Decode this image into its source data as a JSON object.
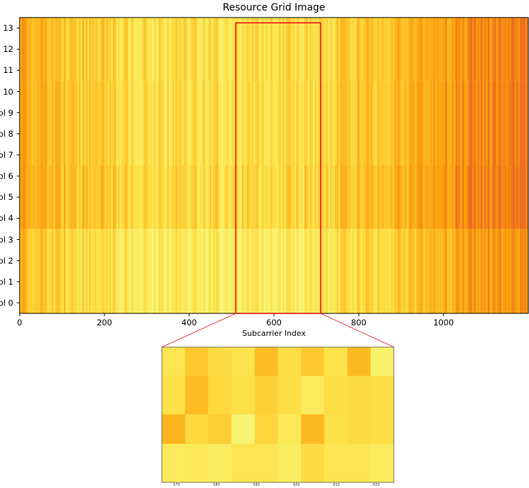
{
  "chart_data": {
    "type": "heatmap",
    "title": "Resource Grid Image",
    "xlabel": "Subcarrier Index",
    "ylabel": "",
    "xlim": [
      0,
      1200
    ],
    "ylim": [
      -0.5,
      13.5
    ],
    "x_ticks": [
      "0",
      "200",
      "400",
      "600",
      "800",
      "1000"
    ],
    "x_tick_values": [
      0,
      200,
      400,
      600,
      800,
      1000
    ],
    "y_ticks": [
      "ol 0",
      "ol 1",
      "ol 2",
      "ol 3",
      "ol 4",
      "ol 5",
      "ol 6",
      "ol 7",
      "ol 8",
      "ol 9",
      "10",
      "11",
      "12",
      "13"
    ],
    "y_tick_values": [
      0,
      1,
      2,
      3,
      4,
      5,
      6,
      7,
      8,
      9,
      10,
      11,
      12,
      13
    ],
    "colormap": [
      "#f7f77c",
      "#fde34a",
      "#fdbd22",
      "#f99a0c",
      "#ee6a22"
    ],
    "symbol_bands": [
      {
        "rows": [
          0,
          3
        ],
        "mean": 0.22
      },
      {
        "rows": [
          4,
          6
        ],
        "mean": 0.5
      },
      {
        "rows": [
          7,
          10
        ],
        "mean": 0.44
      },
      {
        "rows": [
          11,
          13
        ],
        "mean": 0.42
      }
    ],
    "column_profile_x": [
      0,
      100,
      200,
      300,
      400,
      500,
      600,
      700,
      800,
      900,
      1000,
      1100,
      1200
    ],
    "column_profile_level": [
      0.62,
      0.45,
      0.34,
      0.26,
      0.24,
      0.24,
      0.24,
      0.3,
      0.42,
      0.52,
      0.66,
      0.85,
      0.9
    ],
    "highlight": {
      "x_range": [
        510,
        710
      ],
      "y_range": [
        -0.5,
        13.25
      ],
      "color": "#e8101c"
    },
    "inset": {
      "x_ticks": [
        "570",
        "580",
        "590",
        "600",
        "610",
        "620"
      ],
      "rows": 4,
      "cols": 10,
      "values": [
        [
          0.22,
          0.42,
          0.3,
          0.24,
          0.5,
          0.28,
          0.42,
          0.24,
          0.52,
          0.08
        ],
        [
          0.26,
          0.5,
          0.32,
          0.26,
          0.36,
          0.28,
          0.16,
          0.28,
          0.3,
          0.28
        ],
        [
          0.56,
          0.32,
          0.38,
          0.04,
          0.34,
          0.18,
          0.52,
          0.26,
          0.3,
          0.28
        ],
        [
          0.16,
          0.18,
          0.14,
          0.22,
          0.22,
          0.12,
          0.3,
          0.22,
          0.22,
          0.16
        ]
      ]
    }
  }
}
